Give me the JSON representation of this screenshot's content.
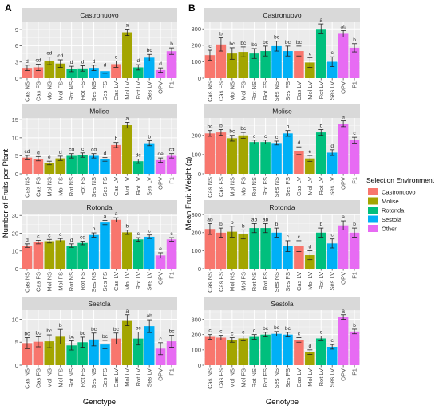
{
  "panel_labels": [
    "A",
    "B"
  ],
  "x_title": "Genotype",
  "legend": {
    "title": "Selection Environment",
    "items": [
      {
        "label": "Castronuovo",
        "color": "#f8766d"
      },
      {
        "label": "Molise",
        "color": "#a3a500"
      },
      {
        "label": "Rotonda",
        "color": "#00bf7d"
      },
      {
        "label": "Sestola",
        "color": "#00b0f6"
      },
      {
        "label": "Other",
        "color": "#e76bf3"
      }
    ]
  },
  "chart_data": [
    {
      "type": "bar",
      "panel": "A",
      "ylabel": "Number of Fruits per Plant",
      "xlabel": "Genotype",
      "categories": [
        "Cas NS",
        "Cas FS",
        "Mol NS",
        "Mol FS",
        "Rot NS",
        "Rot FS",
        "Ses NS",
        "Ses FS",
        "Cas LV",
        "Mol LV",
        "Rot LV",
        "Ses LV",
        "OPV",
        "F1"
      ],
      "category_groups": [
        "Castronuovo",
        "Castronuovo",
        "Molise",
        "Molise",
        "Rotonda",
        "Rotonda",
        "Sestola",
        "Sestola",
        "Castronuovo",
        "Molise",
        "Rotonda",
        "Sestola",
        "Other",
        "Other"
      ],
      "facets": [
        {
          "title": "Castronuovo",
          "ylim": [
            0,
            10.5
          ],
          "yticks": [
            0,
            3,
            6,
            9
          ],
          "values": [
            1.9,
            2.0,
            3.2,
            2.7,
            1.7,
            1.8,
            1.9,
            1.3,
            2.6,
            8.5,
            2.0,
            3.8,
            1.5,
            5.0
          ],
          "errors": [
            0.5,
            0.6,
            0.7,
            0.7,
            0.5,
            0.5,
            0.5,
            0.4,
            0.6,
            0.6,
            0.5,
            0.6,
            0.4,
            0.6
          ],
          "letters": [
            "d",
            "cd",
            "cd",
            "cd",
            "d",
            "d",
            "d",
            "d",
            "c",
            "a",
            "d",
            "bc",
            "d",
            "b"
          ]
        },
        {
          "title": "Molise",
          "ylim": [
            0,
            15.5
          ],
          "yticks": [
            0,
            5,
            10,
            15
          ],
          "values": [
            4.5,
            4.2,
            3.0,
            4.3,
            5.0,
            5.2,
            5.0,
            4.0,
            8.0,
            13.5,
            3.5,
            8.5,
            3.8,
            5.0
          ],
          "errors": [
            0.6,
            0.6,
            0.5,
            0.6,
            0.6,
            0.6,
            0.6,
            0.5,
            0.7,
            0.8,
            0.6,
            0.7,
            0.6,
            0.6
          ],
          "letters": [
            "cd",
            "d",
            "e",
            "d",
            "cd",
            "c",
            "cd",
            "d",
            "b",
            "a",
            "de",
            "b",
            "de",
            "cd"
          ]
        },
        {
          "title": "Rotonda",
          "ylim": [
            0,
            31
          ],
          "yticks": [
            0,
            10,
            20,
            30
          ],
          "values": [
            13.0,
            15.0,
            15.5,
            16.0,
            13.0,
            14.5,
            19.0,
            26.0,
            27.5,
            20.5,
            16.5,
            18.0,
            7.5,
            16.5
          ],
          "errors": [
            1.0,
            1.0,
            1.0,
            1.0,
            1.0,
            1.0,
            1.2,
            1.2,
            1.2,
            1.2,
            1.0,
            1.0,
            1.5,
            1.0
          ],
          "letters": [
            "d",
            "c",
            "c",
            "c",
            "d",
            "cd",
            "b",
            "a",
            "a",
            "b",
            "c",
            "c",
            "e",
            "c"
          ]
        },
        {
          "title": "Sestola",
          "ylim": [
            0,
            12
          ],
          "yticks": [
            0,
            5,
            10
          ],
          "values": [
            4.8,
            5.1,
            5.2,
            6.2,
            4.3,
            5.0,
            5.6,
            4.5,
            5.8,
            9.8,
            5.8,
            8.5,
            3.6,
            5.2
          ],
          "errors": [
            1.2,
            1.1,
            1.4,
            1.6,
            1.0,
            1.1,
            1.4,
            0.9,
            1.2,
            1.2,
            1.4,
            1.4,
            1.3,
            1.3
          ],
          "letters": [
            "bc",
            "bc",
            "bc",
            "b",
            "bc",
            "bc",
            "bc",
            "bc",
            "bc",
            "a",
            "bc",
            "ab",
            "c",
            "bc"
          ]
        }
      ]
    },
    {
      "type": "bar",
      "panel": "B",
      "ylabel": "Mean Fruit Weight (g)",
      "xlabel": "Genotype",
      "categories": [
        "Cas NS",
        "Cas FS",
        "Mol NS",
        "Mol FS",
        "Rot NS",
        "Rot FS",
        "Ses NS",
        "Ses FS",
        "Cas LV",
        "Mol LV",
        "Rot LV",
        "Ses LV",
        "OPV",
        "F1"
      ],
      "category_groups": [
        "Castronuovo",
        "Castronuovo",
        "Molise",
        "Molise",
        "Rotonda",
        "Rotonda",
        "Sestola",
        "Sestola",
        "Castronuovo",
        "Molise",
        "Rotonda",
        "Sestola",
        "Other",
        "Other"
      ],
      "facets": [
        {
          "title": "Castronuovo",
          "ylim": [
            0,
            345
          ],
          "yticks": [
            0,
            100,
            200,
            300
          ],
          "values": [
            140,
            205,
            150,
            160,
            150,
            165,
            195,
            165,
            165,
            95,
            300,
            100,
            270,
            185
          ],
          "errors": [
            30,
            40,
            35,
            30,
            30,
            30,
            30,
            30,
            30,
            30,
            30,
            30,
            20,
            25
          ],
          "letters": [
            "c",
            "b",
            "bc",
            "bc",
            "bc",
            "bc",
            "bc",
            "bc",
            "bc",
            "c",
            "a",
            "c",
            "ab",
            "b"
          ]
        },
        {
          "title": "Molise",
          "ylim": [
            0,
            290
          ],
          "yticks": [
            0,
            100,
            200
          ],
          "values": [
            210,
            215,
            185,
            200,
            165,
            165,
            160,
            210,
            120,
            80,
            215,
            110,
            260,
            175
          ],
          "errors": [
            15,
            15,
            15,
            15,
            10,
            10,
            10,
            15,
            20,
            15,
            15,
            15,
            15,
            15
          ],
          "letters": [
            "bc",
            "b",
            "bc",
            "bc",
            "c",
            "c",
            "c",
            "b",
            "d",
            "e",
            "b",
            "d",
            "a",
            "c"
          ]
        },
        {
          "title": "Rotonda",
          "ylim": [
            0,
            305
          ],
          "yticks": [
            0,
            100,
            200,
            300
          ],
          "values": [
            220,
            200,
            205,
            190,
            225,
            225,
            200,
            125,
            125,
            75,
            200,
            140,
            240,
            200
          ],
          "errors": [
            30,
            25,
            30,
            25,
            25,
            25,
            25,
            30,
            30,
            25,
            25,
            25,
            25,
            25
          ],
          "letters": [
            "ab",
            "b",
            "b",
            "b",
            "ab",
            "ab",
            "b",
            "c",
            "c",
            "d",
            "b",
            "c",
            "a",
            "b"
          ]
        },
        {
          "title": "Sestola",
          "ylim": [
            0,
            360
          ],
          "yticks": [
            0,
            100,
            200,
            300
          ],
          "values": [
            185,
            180,
            165,
            175,
            185,
            200,
            205,
            200,
            165,
            85,
            175,
            120,
            315,
            220
          ],
          "errors": [
            15,
            15,
            15,
            15,
            15,
            15,
            15,
            15,
            15,
            15,
            15,
            15,
            15,
            15
          ],
          "letters": [
            "c",
            "c",
            "c",
            "c",
            "c",
            "bc",
            "bc",
            "bc",
            "c",
            "d",
            "c",
            "c",
            "a",
            "b"
          ]
        }
      ]
    }
  ]
}
